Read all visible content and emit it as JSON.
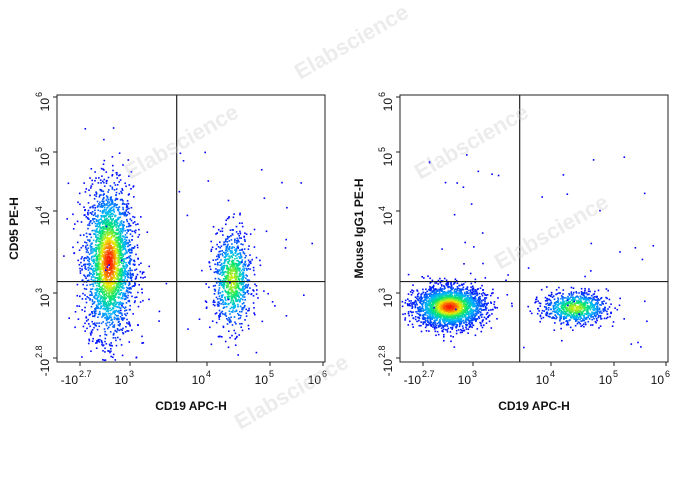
{
  "watermark": "Elabscience",
  "chart_data": [
    {
      "type": "scatter",
      "title": "",
      "xlabel": "CD19 APC-H",
      "ylabel": "CD95 PE-H",
      "x_scale": "biexponential",
      "y_scale": "biexponential",
      "x_ticks": [
        {
          "base": "-10",
          "exp": "2.7"
        },
        {
          "base": "10",
          "exp": "3"
        },
        {
          "base": "10",
          "exp": "4"
        },
        {
          "base": "10",
          "exp": "5"
        },
        {
          "base": "10",
          "exp": "6"
        }
      ],
      "y_ticks": [
        {
          "base": "-10",
          "exp": "2.8"
        },
        {
          "base": "10",
          "exp": "3"
        },
        {
          "base": "10",
          "exp": "4"
        },
        {
          "base": "10",
          "exp": "5"
        },
        {
          "base": "10",
          "exp": "6"
        }
      ],
      "quadrant_gate": {
        "x": 4000,
        "y": 1400
      },
      "populations": [
        {
          "x_center": 550,
          "y_center": 2500,
          "count": 2600,
          "description": "CD19- CD95+ main population"
        },
        {
          "x_center": 25000,
          "y_center": 1500,
          "count": 900,
          "description": "CD19+ population"
        }
      ],
      "density_colormap": [
        "#0000ff",
        "#00ccff",
        "#00ff66",
        "#ffff00",
        "#ff0000"
      ]
    },
    {
      "type": "scatter",
      "title": "",
      "xlabel": "CD19 APC-H",
      "ylabel": "Mouse IgG1 PE-H",
      "x_scale": "biexponential",
      "y_scale": "biexponential",
      "x_ticks": [
        {
          "base": "-10",
          "exp": "2.7"
        },
        {
          "base": "10",
          "exp": "3"
        },
        {
          "base": "10",
          "exp": "4"
        },
        {
          "base": "10",
          "exp": "5"
        },
        {
          "base": "10",
          "exp": "6"
        }
      ],
      "y_ticks": [
        {
          "base": "-10",
          "exp": "2.8"
        },
        {
          "base": "10",
          "exp": "3"
        },
        {
          "base": "10",
          "exp": "4"
        },
        {
          "base": "10",
          "exp": "5"
        },
        {
          "base": "10",
          "exp": "6"
        }
      ],
      "quadrant_gate": {
        "x": 4000,
        "y": 1400
      },
      "populations": [
        {
          "x_center": 500,
          "y_center": 650,
          "count": 2400,
          "description": "CD19- isotype control population"
        },
        {
          "x_center": 25000,
          "y_center": 620,
          "count": 800,
          "description": "CD19+ isotype control population"
        }
      ],
      "density_colormap": [
        "#0000ff",
        "#00ccff",
        "#00ff66",
        "#ffff00",
        "#ff0000"
      ]
    }
  ]
}
